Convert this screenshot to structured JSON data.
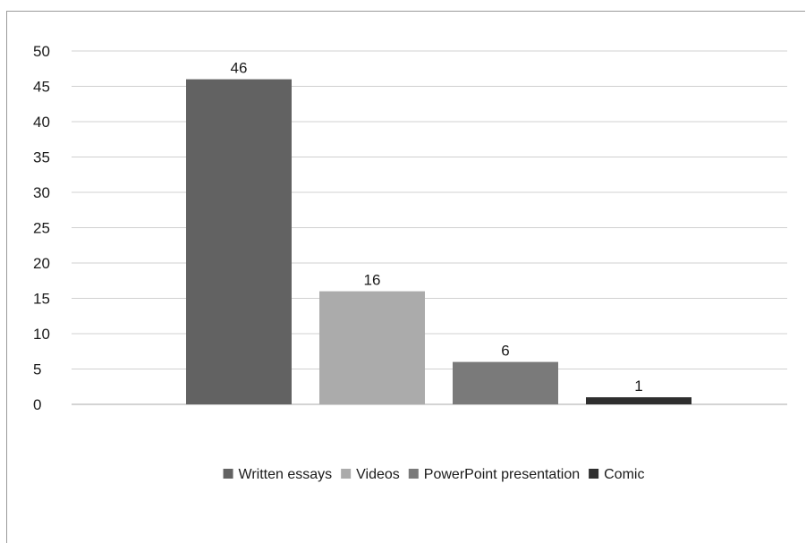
{
  "chart_data": {
    "type": "bar",
    "categories": [
      "Written essays",
      "Videos",
      "PowerPoint presentation",
      "Comic"
    ],
    "values": [
      46,
      16,
      6,
      1
    ],
    "colors": [
      "#626262",
      "#ababab",
      "#7a7a7a",
      "#2e2e2e"
    ],
    "data_labels": [
      "46",
      "16",
      "6",
      "1"
    ],
    "ylim": [
      0,
      50
    ],
    "y_ticks": [
      0,
      5,
      10,
      15,
      20,
      25,
      30,
      35,
      40,
      45,
      50
    ],
    "grid": true,
    "legend_position": "bottom",
    "title": "",
    "xlabel": "",
    "ylabel": ""
  }
}
